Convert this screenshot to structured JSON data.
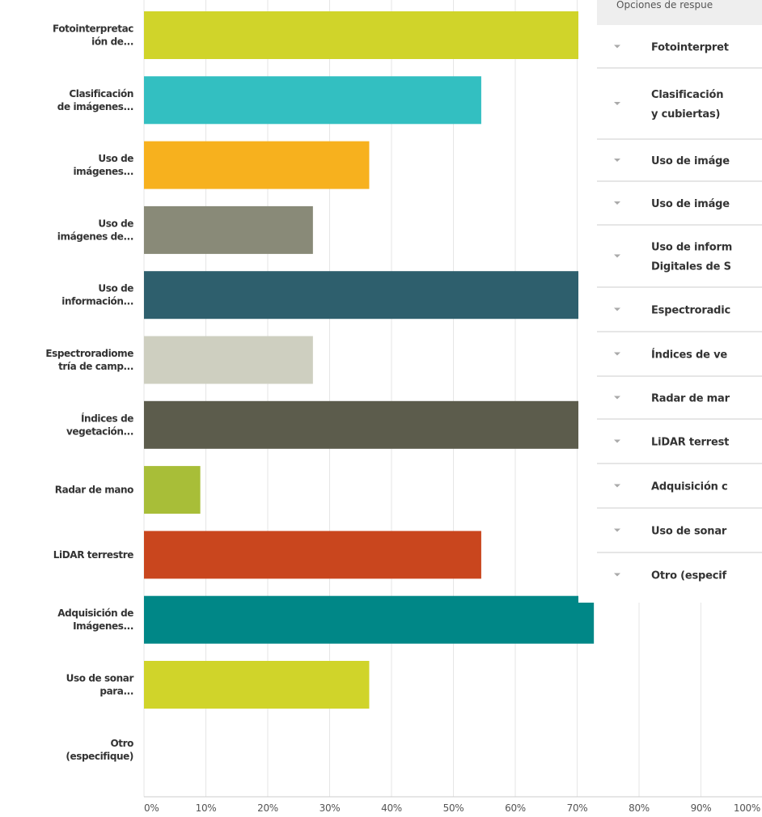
{
  "chart_data": {
    "type": "bar",
    "orientation": "horizontal",
    "categories": [
      "Fotointerpretac\nión de...",
      "Clasificación\nde imágenes...",
      "Uso de\nimágenes...",
      "Uso de\nimágenes de...",
      "Uso de\ninformación...",
      "Espectroradiome\ntría de camp...",
      "Índices de\nvegetación...",
      "Radar de mano",
      "LiDAR terrestre",
      "Adquisición de\nImágenes...",
      "Uso de sonar\npara...",
      "Otro\n(especifique)"
    ],
    "values": [
      81.8,
      54.5,
      36.4,
      27.3,
      81.8,
      27.3,
      81.8,
      9.1,
      54.5,
      72.7,
      36.4,
      0
    ],
    "colors": [
      "#d0d42a",
      "#33bfc1",
      "#f7b11e",
      "#898a78",
      "#2e5f6d",
      "#cecfc0",
      "#5c5c4c",
      "#a8be38",
      "#c9461e",
      "#008787",
      "#d0d42a",
      "#d0d42a"
    ],
    "xlim": [
      0,
      100
    ],
    "xticks": [
      {
        "value": 0,
        "label": "0%"
      },
      {
        "value": 10,
        "label": "10%"
      },
      {
        "value": 20,
        "label": "20%"
      },
      {
        "value": 30,
        "label": "30%"
      },
      {
        "value": 40,
        "label": "40%"
      },
      {
        "value": 50,
        "label": "50%"
      },
      {
        "value": 60,
        "label": "60%"
      },
      {
        "value": 70,
        "label": "70%"
      },
      {
        "value": 80,
        "label": "80%"
      },
      {
        "value": 90,
        "label": "90%"
      },
      {
        "value": 100,
        "label": "100%"
      }
    ],
    "grid": true
  },
  "overlay_table": {
    "header": "Opciones de respue",
    "rows": [
      [
        "Fotointerpret"
      ],
      [
        "Clasificación",
        "y cubiertas)"
      ],
      [
        "Uso de imáge"
      ],
      [
        "Uso de imáge"
      ],
      [
        "Uso de inform",
        "Digitales de S"
      ],
      [
        "Espectroradic"
      ],
      [
        "Índices de ve"
      ],
      [
        "Radar de mar"
      ],
      [
        "LiDAR terrest"
      ],
      [
        "Adquisición c"
      ],
      [
        "Uso de sonar"
      ],
      [
        "Otro (especif"
      ]
    ]
  }
}
